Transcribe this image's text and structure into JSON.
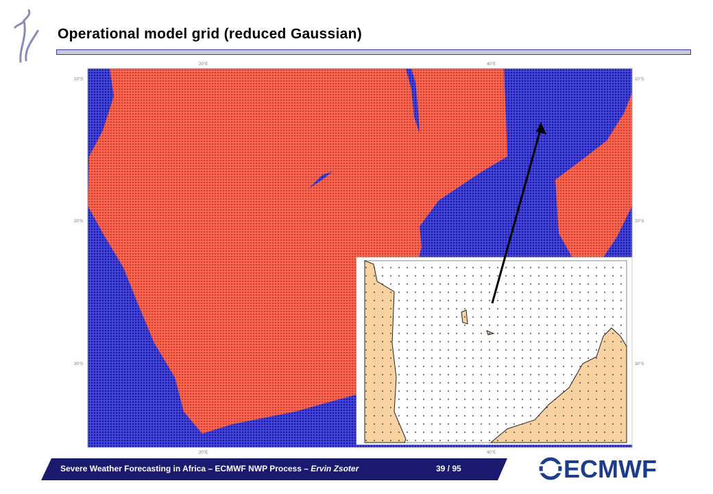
{
  "header": {
    "title": "Operational model grid (reduced Gaussian)"
  },
  "map": {
    "lon_labels": [
      "20°E",
      "40°E"
    ],
    "lat_labels": [
      "10°S",
      "20°S",
      "30°S"
    ]
  },
  "footer": {
    "text": "Severe Weather Forecasting in Africa – ECMWF NWP Process – ",
    "author": "Ervin Zsoter",
    "page": "39 / 95"
  },
  "logo": {
    "text": "ECMWF"
  }
}
